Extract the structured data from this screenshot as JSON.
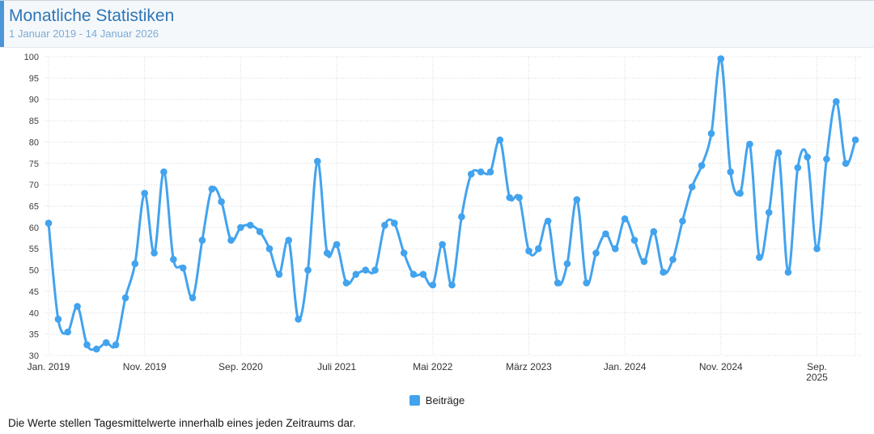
{
  "header": {
    "title": "Monatliche Statistiken",
    "subtitle": "1 Januar 2019 - 14 Januar 2026"
  },
  "legend": {
    "label": "Beiträge"
  },
  "footer": {
    "note": "Die Werte stellen Tagesmittelwerte innerhalb eines jeden Zeitraums dar."
  },
  "colors": {
    "line": "#42a3ee",
    "point": "#42a3ee",
    "accent_bar": "#4a96d8",
    "title_text": "#2d76b8",
    "subtitle_text": "#7cabd8",
    "grid": "#d8d8d8",
    "axis_text": "#3d3d3d",
    "header_bg": "#f5f8fa"
  },
  "chart_data": {
    "type": "line",
    "title": "Monatliche Statistiken",
    "x_unit": "month",
    "x_range": [
      "Jan 2019",
      "Jan 2026"
    ],
    "series": [
      {
        "name": "Beiträge",
        "values": [
          61,
          38.5,
          35.5,
          41.5,
          32.5,
          31.5,
          33,
          32.5,
          43.5,
          51.5,
          68,
          54,
          73,
          52.5,
          50.5,
          43.5,
          57,
          69,
          66,
          57,
          60,
          60.5,
          59,
          55,
          49,
          57,
          38.5,
          50,
          75.5,
          54,
          56,
          47,
          49,
          50,
          50,
          60.5,
          61,
          54,
          49,
          49,
          46.5,
          56,
          46.5,
          62.5,
          72.5,
          73,
          73,
          80.5,
          67,
          67,
          54.5,
          55,
          61.5,
          47,
          51.5,
          66.5,
          47,
          54,
          58.5,
          55,
          62,
          57,
          52,
          59,
          49.5,
          52.5,
          61.5,
          69.5,
          74.5,
          82,
          99.5,
          73,
          68,
          79.5,
          53,
          63.5,
          77.5,
          49.5,
          74,
          76.5,
          55,
          76,
          89.5,
          75,
          80.5
        ]
      }
    ],
    "ylim": [
      30,
      100
    ],
    "y_tick_step": 5,
    "y_tick_labels": [
      30,
      35,
      40,
      45,
      50,
      55,
      60,
      65,
      70,
      75,
      80,
      85,
      90,
      95,
      100
    ],
    "x_tick_indices": [
      0,
      10,
      20,
      30,
      40,
      50,
      60,
      70,
      80
    ],
    "x_tick_labels": [
      [
        "Jan. 2019"
      ],
      [
        "Nov. 2019"
      ],
      [
        "Sep. 2020"
      ],
      [
        "Juli 2021"
      ],
      [
        "Mai 2022"
      ],
      [
        "März 2023"
      ],
      [
        "Jan. 2024"
      ],
      [
        "Nov. 2024"
      ],
      [
        "Sep.",
        "2025"
      ]
    ],
    "grid": true,
    "grid_style": "dotted",
    "markers": true,
    "legend_position": "bottom"
  }
}
